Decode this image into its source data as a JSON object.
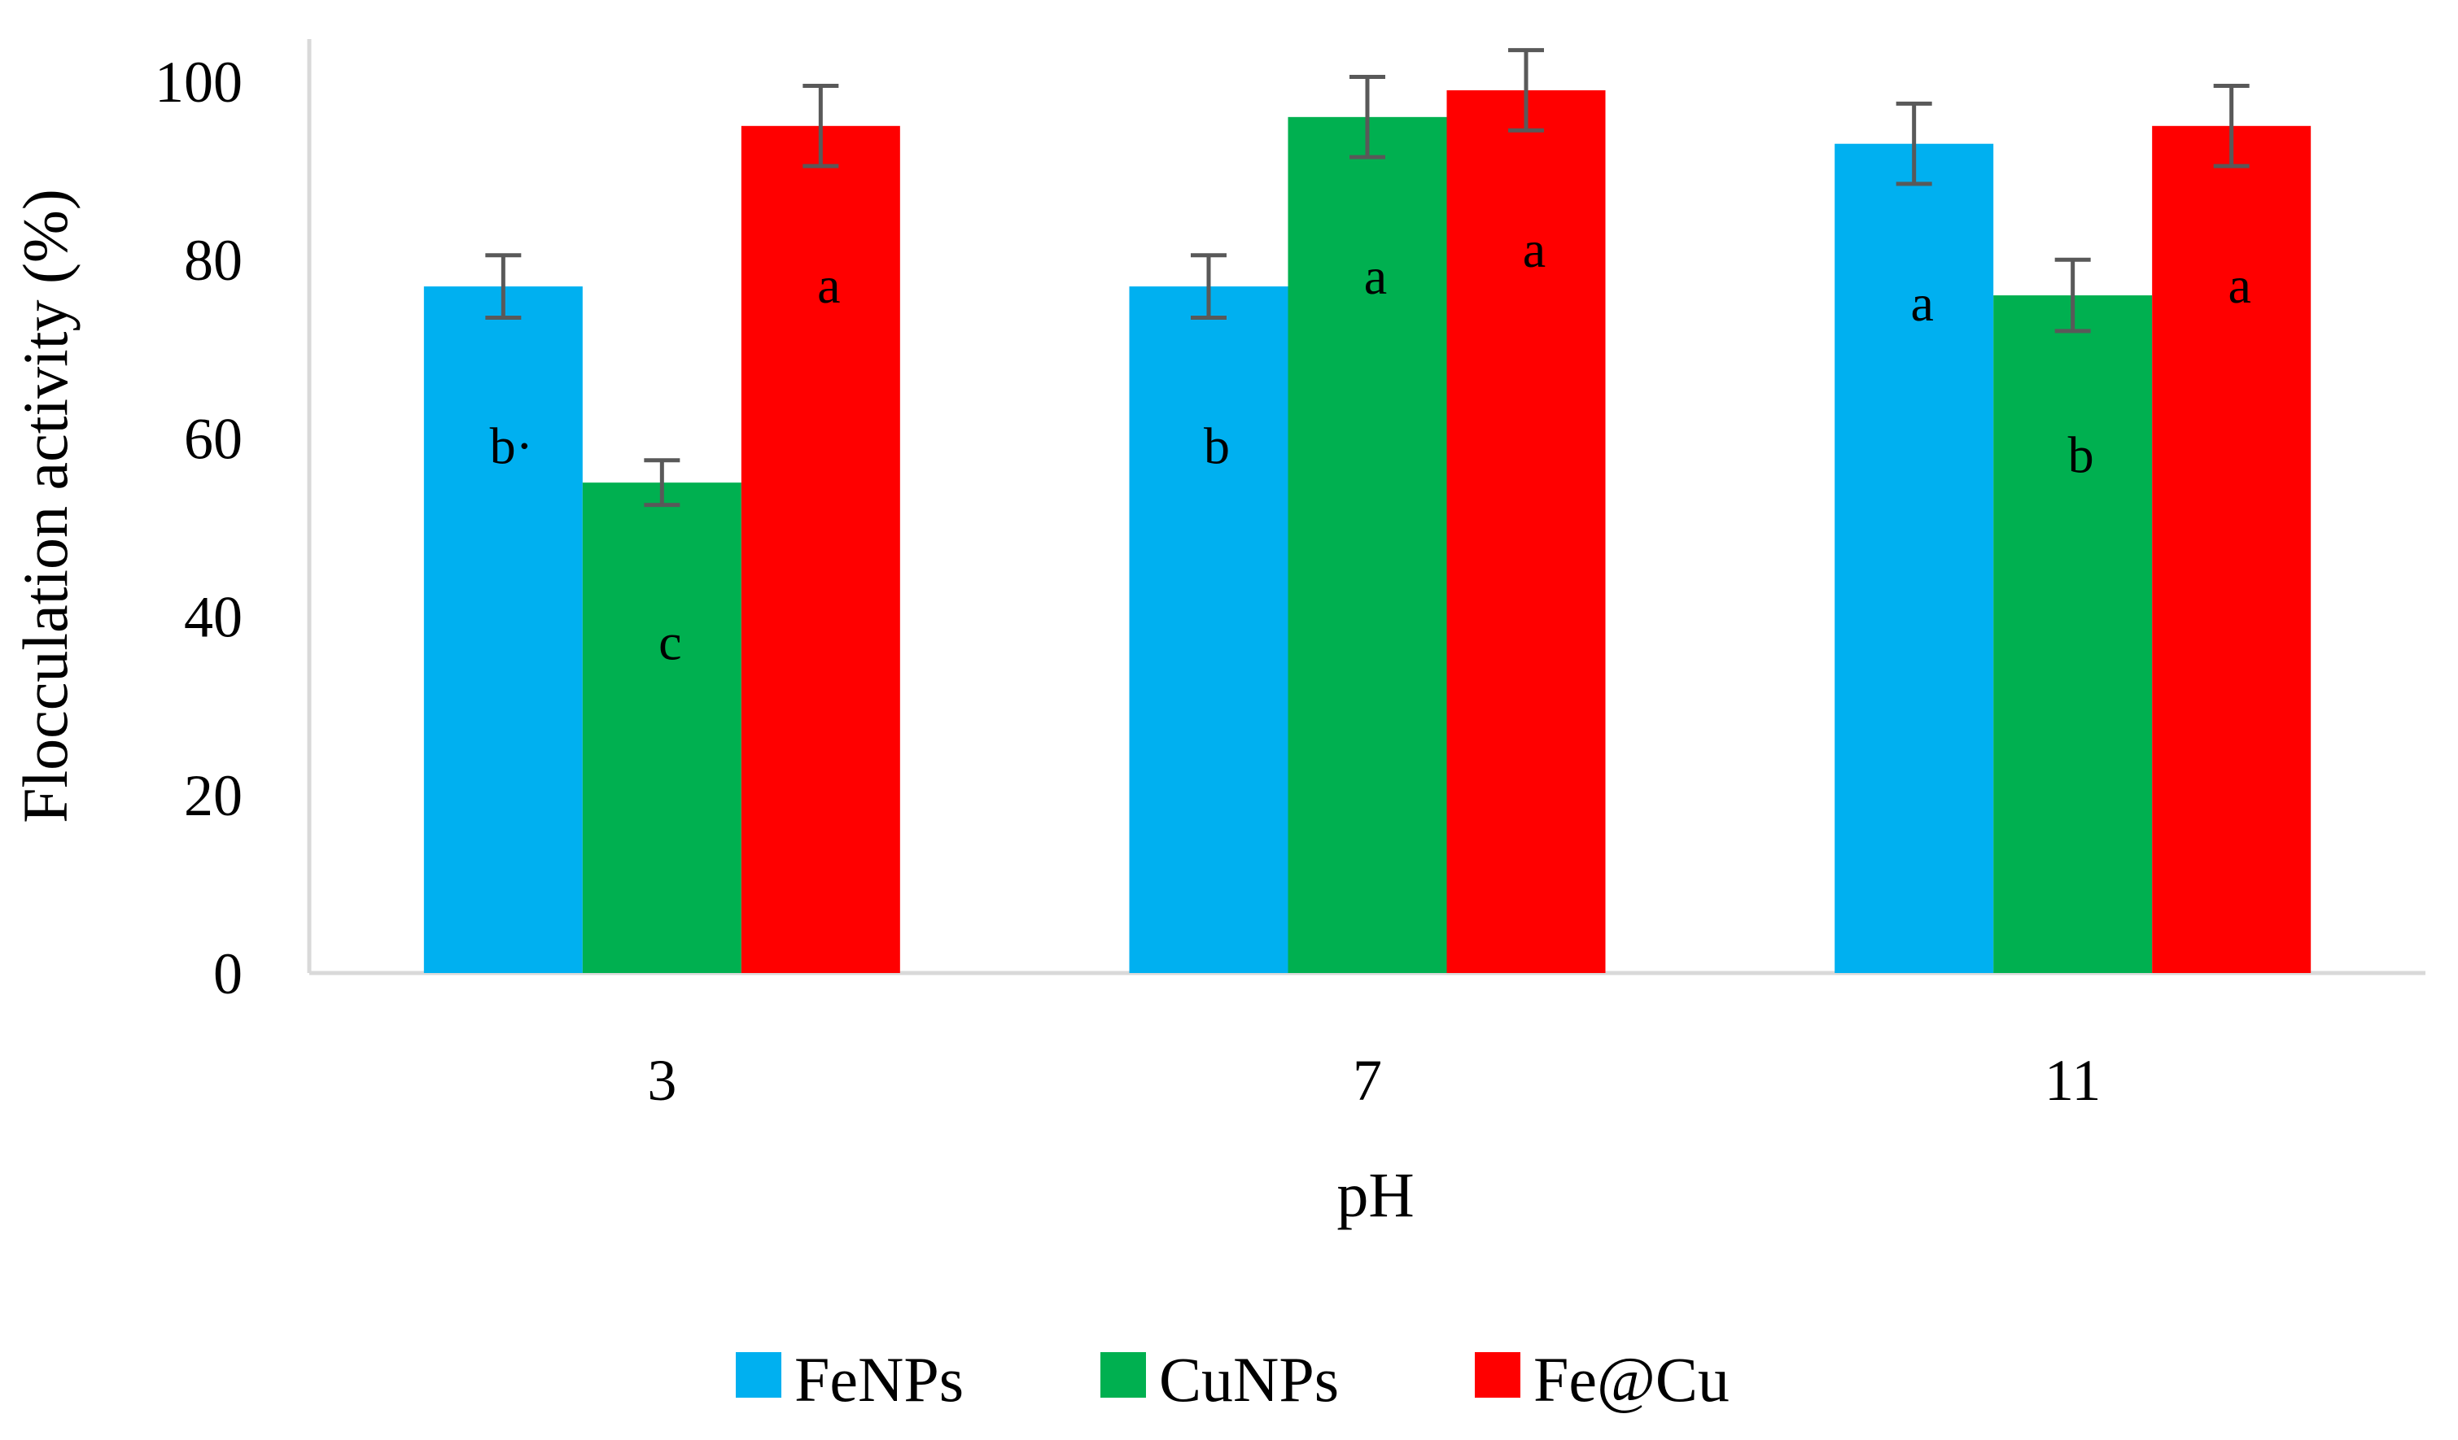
{
  "chart_data": {
    "type": "bar",
    "title": "",
    "xlabel": "pH",
    "ylabel": "Flocculation activity (%)",
    "ylim": [
      0,
      100
    ],
    "yticks": [
      0,
      20,
      40,
      60,
      80,
      100
    ],
    "categories": [
      "3",
      "7",
      "11"
    ],
    "grid": false,
    "legend_position": "bottom",
    "series": [
      {
        "name": "FeNPs",
        "color": "#00b0f0",
        "values": [
          77,
          77,
          93
        ],
        "errors": [
          3.5,
          3.5,
          4.5
        ],
        "letters": [
          "b·",
          "b",
          "a"
        ]
      },
      {
        "name": "CuNPs",
        "color": "#00b050",
        "values": [
          55,
          96,
          76
        ],
        "errors": [
          2.5,
          4.5,
          4
        ],
        "letters": [
          "c",
          "a",
          "b"
        ]
      },
      {
        "name": "Fe@Cu",
        "color": "#ff0000",
        "values": [
          95,
          99,
          95
        ],
        "errors": [
          4.5,
          4.5,
          4.5
        ],
        "letters": [
          "a",
          "a",
          "a"
        ]
      }
    ]
  }
}
